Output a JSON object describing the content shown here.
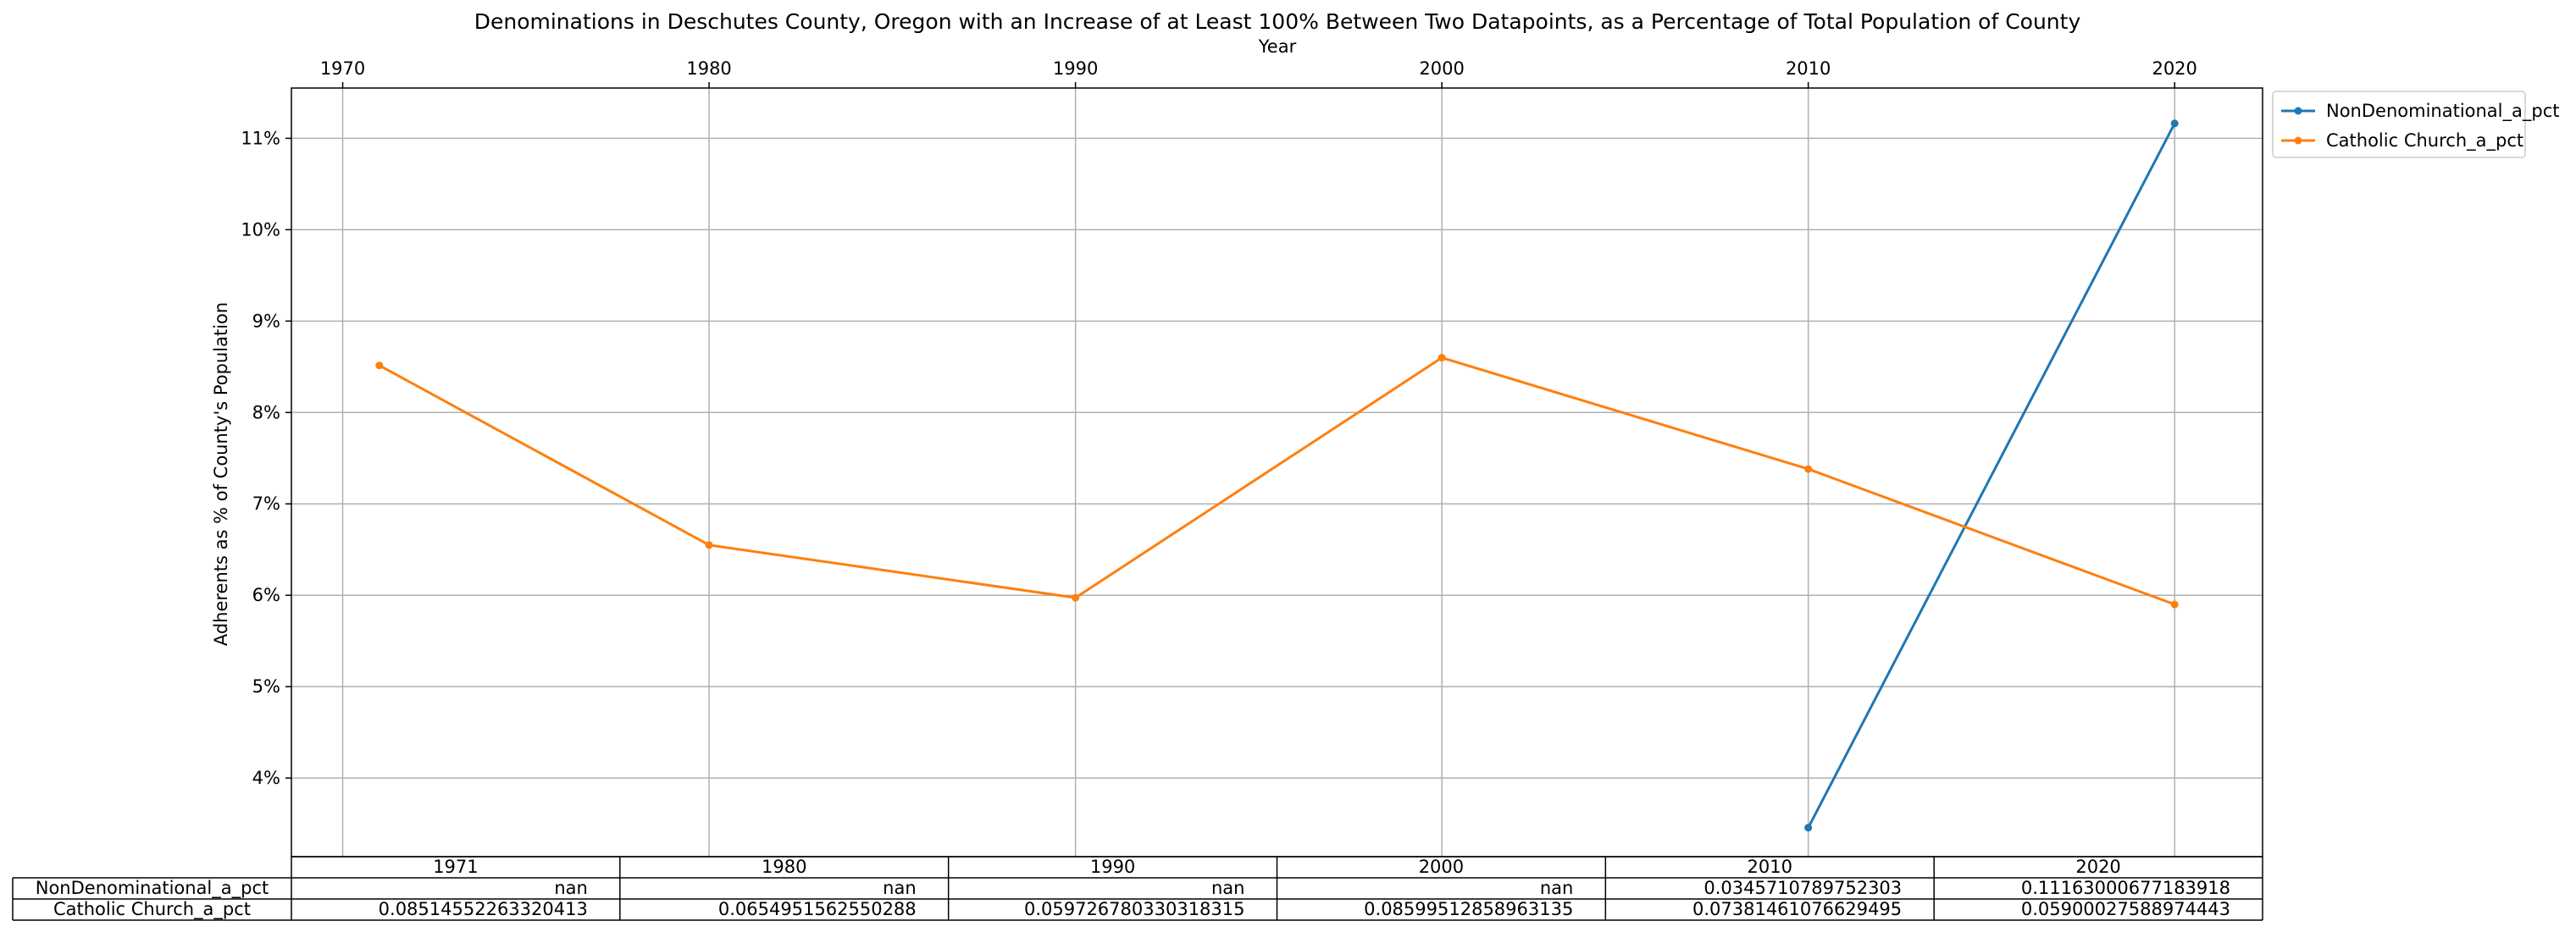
{
  "chart_data": {
    "type": "line",
    "title": "Denominations in Deschutes County, Oregon with an Increase of at Least 100% Between Two Datapoints, as a Percentage of Total Population of County",
    "xlabel": "Year",
    "ylabel": "Adherents as % of County's Population",
    "x_ticks": [
      1970,
      1980,
      1990,
      2000,
      2010,
      2020
    ],
    "y_ticks": [
      "4%",
      "5%",
      "6%",
      "7%",
      "8%",
      "9%",
      "10%",
      "11%"
    ],
    "y_tick_values": [
      0.04,
      0.05,
      0.06,
      0.07,
      0.08,
      0.09,
      0.1,
      0.11
    ],
    "xlim": [
      1968.6,
      2022.4
    ],
    "ylim": [
      0.0314,
      0.1155
    ],
    "x_axis_position": "top",
    "grid": true,
    "legend_position": "outside-upper-right",
    "x": [
      1971,
      1980,
      1990,
      2000,
      2010,
      2020
    ],
    "series": [
      {
        "name": "NonDenominational_a_pct",
        "color": "#1f77b4",
        "values": [
          null,
          null,
          null,
          null,
          0.0345710789752303,
          0.11163000677183918
        ]
      },
      {
        "name": "Catholic Church_a_pct",
        "color": "#ff7f0e",
        "values": [
          0.08514552263320413,
          0.0654951562550288,
          0.059726780330318315,
          0.08599512858963135,
          0.07381461076629495,
          0.05900027588974443
        ]
      }
    ],
    "table": {
      "columns": [
        "1971",
        "1980",
        "1990",
        "2000",
        "2010",
        "2020"
      ],
      "rows": [
        {
          "label": "NonDenominational_a_pct",
          "cells": [
            "nan",
            "nan",
            "nan",
            "nan",
            "0.0345710789752303",
            "0.11163000677183918"
          ]
        },
        {
          "label": "Catholic Church_a_pct",
          "cells": [
            "0.08514552263320413",
            "0.0654951562550288",
            "0.059726780330318315",
            "0.08599512858963135",
            "0.07381461076629495",
            "0.05900027588974443"
          ]
        }
      ]
    }
  }
}
